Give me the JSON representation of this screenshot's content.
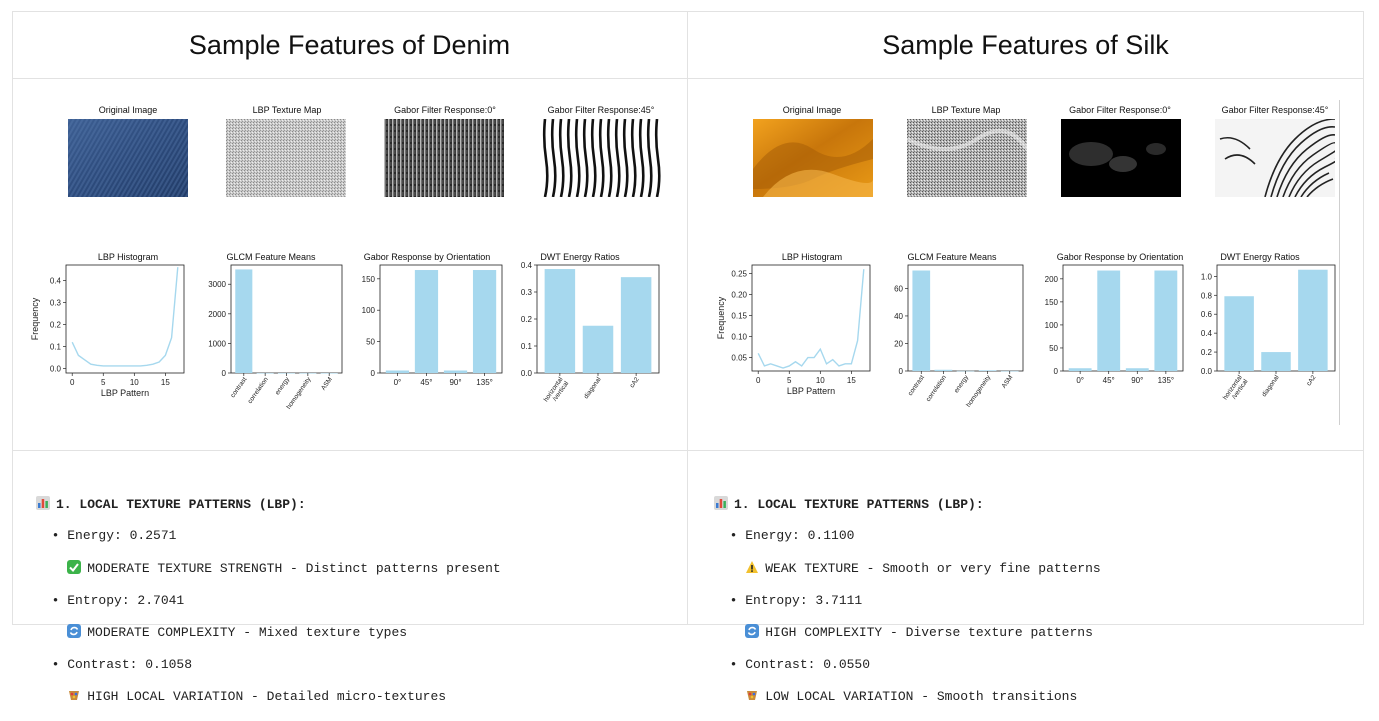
{
  "denim": {
    "title": "Sample Features of Denim",
    "panel_titles": [
      "Original Image",
      "LBP Texture Map",
      "Gabor Filter Response:0°",
      "Gabor Filter Response:45°"
    ],
    "charts": {
      "lbp_title": "LBP Histogram",
      "glcm_title": "GLCM Feature Means",
      "gabor_title": "Gabor Response by Orientation",
      "dwt_title": "DWT Energy Ratios"
    },
    "report": {
      "header": "1. LOCAL TEXTURE PATTERNS (LBP):",
      "energy": "• Energy: 0.2571",
      "energy_note": "MODERATE TEXTURE STRENGTH - Distinct patterns present",
      "entropy": "• Entropy: 2.7041",
      "entropy_note": "MODERATE COMPLEXITY - Mixed texture types",
      "contrast": "• Contrast: 0.1058",
      "contrast_note": "HIGH LOCAL VARIATION - Detailed micro-textures"
    }
  },
  "silk": {
    "title": "Sample Features of Silk",
    "panel_titles": [
      "Original Image",
      "LBP Texture Map",
      "Gabor Filter Response:0°",
      "Gabor Filter Response:45°"
    ],
    "charts": {
      "lbp_title": "LBP Histogram",
      "glcm_title": "GLCM Feature Means",
      "gabor_title": "Gabor Response by Orientation",
      "dwt_title": "DWT Energy Ratios"
    },
    "report": {
      "header": "1. LOCAL TEXTURE PATTERNS (LBP):",
      "energy": "• Energy: 0.1100",
      "energy_note": "WEAK TEXTURE - Smooth or very fine patterns",
      "entropy": "• Entropy: 3.7111",
      "entropy_note": "HIGH COMPLEXITY - Diverse texture patterns",
      "contrast": "• Contrast: 0.0550",
      "contrast_note": "LOW LOCAL VARIATION - Smooth transitions"
    }
  },
  "colors": {
    "bar": "#a6d8ee",
    "line": "#a6d8ee",
    "axis": "#222222"
  },
  "chart_data": [
    {
      "id": "denim-lbp",
      "type": "line",
      "title": "LBP Histogram",
      "xlabel": "LBP Pattern",
      "ylabel": "Frequency",
      "x": [
        0,
        1,
        2,
        3,
        4,
        5,
        6,
        7,
        8,
        9,
        10,
        11,
        12,
        13,
        14,
        15,
        16,
        17
      ],
      "values": [
        0.12,
        0.06,
        0.04,
        0.02,
        0.015,
        0.012,
        0.012,
        0.012,
        0.012,
        0.012,
        0.012,
        0.012,
        0.015,
        0.02,
        0.03,
        0.06,
        0.14,
        0.46
      ],
      "xlim": [
        -1,
        18
      ],
      "ylim": [
        -0.02,
        0.47
      ],
      "xticks": [
        "0",
        "5",
        "10",
        "15"
      ],
      "xtick_vals": [
        0,
        5,
        10,
        15
      ],
      "yticks": [
        "0.0",
        "0.1",
        "0.2",
        "0.3",
        "0.4"
      ],
      "ytick_vals": [
        0,
        0.1,
        0.2,
        0.3,
        0.4
      ]
    },
    {
      "id": "denim-glcm",
      "type": "bar",
      "title": "GLCM Feature Means",
      "categories": [
        "contrast",
        "correlation",
        "energy",
        "homogeneity",
        "ASM"
      ],
      "values": [
        3500,
        1,
        0.5,
        1,
        0.3
      ],
      "ylim": [
        0,
        3650
      ],
      "yticks": [
        "0",
        "1000",
        "2000",
        "3000"
      ],
      "ytick_vals": [
        0,
        1000,
        2000,
        3000
      ],
      "rotate_labels": true
    },
    {
      "id": "denim-gabor",
      "type": "bar",
      "title": "Gabor Response by Orientation",
      "categories": [
        "0°",
        "45°",
        "90°",
        "135°"
      ],
      "values": [
        4,
        164,
        4,
        164
      ],
      "ylim": [
        0,
        172
      ],
      "yticks": [
        "0",
        "50",
        "100",
        "150"
      ],
      "ytick_vals": [
        0,
        50,
        100,
        150
      ],
      "rotate_labels": false
    },
    {
      "id": "denim-dwt",
      "type": "bar",
      "title": "DWT Energy Ratios",
      "categories": [
        "horizontal\n/vertical",
        "diagonal",
        "cA2"
      ],
      "values": [
        0.385,
        0.175,
        0.355
      ],
      "ylim": [
        0,
        0.4
      ],
      "yticks": [
        "0.0",
        "0.1",
        "0.2",
        "0.3",
        "0.4"
      ],
      "ytick_vals": [
        0,
        0.1,
        0.2,
        0.3,
        0.4
      ],
      "rotate_labels": true
    },
    {
      "id": "silk-lbp",
      "type": "line",
      "title": "LBP Histogram",
      "xlabel": "LBP Pattern",
      "ylabel": "Frequency",
      "x": [
        0,
        1,
        2,
        3,
        4,
        5,
        6,
        7,
        8,
        9,
        10,
        11,
        12,
        13,
        14,
        15,
        16,
        17
      ],
      "values": [
        0.06,
        0.03,
        0.035,
        0.03,
        0.025,
        0.03,
        0.04,
        0.03,
        0.05,
        0.05,
        0.07,
        0.035,
        0.045,
        0.03,
        0.035,
        0.035,
        0.09,
        0.26
      ],
      "xlim": [
        -1,
        18
      ],
      "ylim": [
        0.018,
        0.27
      ],
      "xticks": [
        "0",
        "5",
        "10",
        "15"
      ],
      "xtick_vals": [
        0,
        5,
        10,
        15
      ],
      "yticks": [
        "0.05",
        "0.10",
        "0.15",
        "0.20",
        "0.25"
      ],
      "ytick_vals": [
        0.05,
        0.1,
        0.15,
        0.2,
        0.25
      ]
    },
    {
      "id": "silk-glcm",
      "type": "bar",
      "title": "GLCM Feature Means",
      "categories": [
        "contrast",
        "correlation",
        "energy",
        "homogeneity",
        "ASM"
      ],
      "values": [
        73,
        0.9,
        0.1,
        0.5,
        0.05
      ],
      "ylim": [
        0,
        77
      ],
      "yticks": [
        "0",
        "20",
        "40",
        "60"
      ],
      "ytick_vals": [
        0,
        20,
        40,
        60
      ],
      "rotate_labels": true
    },
    {
      "id": "silk-gabor",
      "type": "bar",
      "title": "Gabor Response by Orientation",
      "categories": [
        "0°",
        "45°",
        "90°",
        "135°"
      ],
      "values": [
        6,
        218,
        6,
        218
      ],
      "ylim": [
        0,
        230
      ],
      "yticks": [
        "0",
        "50",
        "100",
        "150",
        "200"
      ],
      "ytick_vals": [
        0,
        50,
        100,
        150,
        200
      ],
      "rotate_labels": false
    },
    {
      "id": "silk-dwt",
      "type": "bar",
      "title": "DWT Energy Ratios",
      "categories": [
        "horizontal\n/vertical",
        "diagonal",
        "cA2"
      ],
      "values": [
        0.79,
        0.2,
        1.07
      ],
      "ylim": [
        0,
        1.12
      ],
      "yticks": [
        "0.0",
        "0.2",
        "0.4",
        "0.6",
        "0.8",
        "1.0"
      ],
      "ytick_vals": [
        0,
        0.2,
        0.4,
        0.6,
        0.8,
        1.0
      ],
      "rotate_labels": true
    }
  ]
}
